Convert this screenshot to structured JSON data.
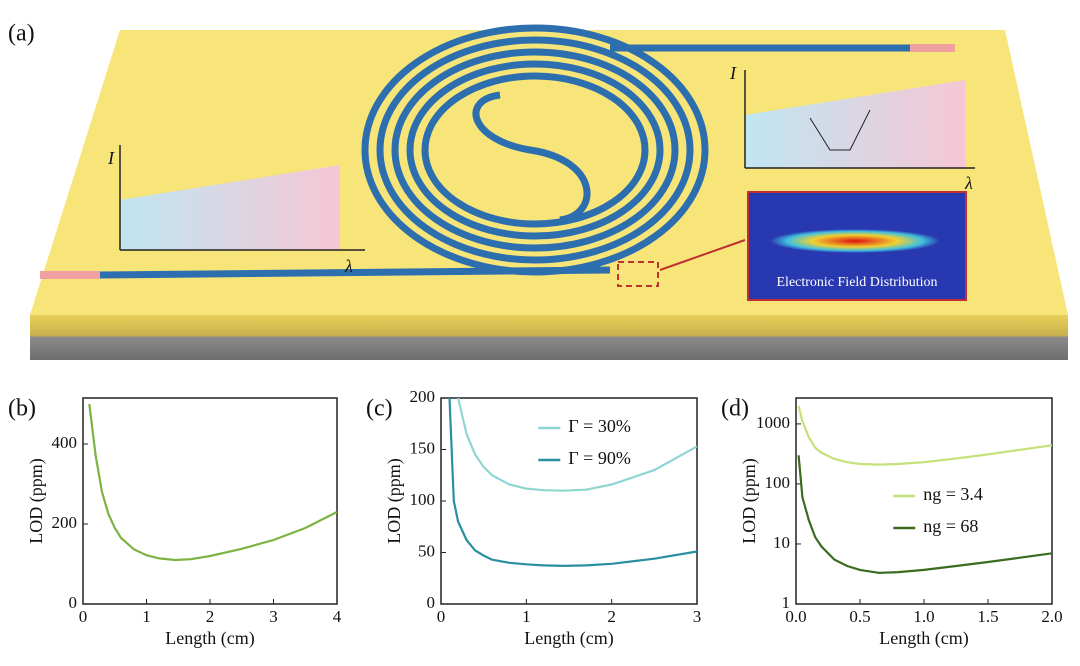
{
  "illustration": {
    "label": "(a)",
    "inset_left": {
      "y_axis": "I",
      "x_axis": "λ"
    },
    "inset_right": {
      "y_axis": "I",
      "x_axis": "λ"
    },
    "field_caption": "Electronic Field Distribution"
  },
  "chart_data": [
    {
      "type": "line",
      "panel_label": "(b)",
      "x_label": "Length (cm)",
      "y_label": "LOD (ppm)",
      "x": [
        0.1,
        0.2,
        0.3,
        0.4,
        0.5,
        0.6,
        0.8,
        1.0,
        1.2,
        1.45,
        1.7,
        2.0,
        2.5,
        3.0,
        3.5,
        4.0
      ],
      "values": [
        500,
        370,
        280,
        225,
        190,
        165,
        137,
        122,
        114,
        110,
        112,
        120,
        138,
        160,
        190,
        230
      ],
      "color": "#7cb342",
      "xlim": [
        0,
        4
      ],
      "xticks": [
        0,
        1,
        2,
        3,
        4
      ],
      "ylim": [
        0,
        515
      ],
      "yticks": [
        0,
        200,
        400
      ]
    },
    {
      "type": "line",
      "panel_label": "(c)",
      "x_label": "Length (cm)",
      "y_label": "LOD (ppm)",
      "x": [
        0.1,
        0.15,
        0.2,
        0.3,
        0.4,
        0.5,
        0.6,
        0.8,
        1.0,
        1.2,
        1.43,
        1.7,
        2.0,
        2.5,
        3.0
      ],
      "series": [
        {
          "name": "Γ = 30%",
          "color": "#8fd6d2",
          "values": [
            null,
            null,
            200,
            165,
            145,
            133,
            125,
            116,
            112,
            110.5,
            110,
            111,
            116,
            130,
            153
          ]
        },
        {
          "name": "Γ = 90%",
          "color": "#2a8fa0",
          "values": [
            200,
            100,
            80,
            62,
            52,
            47,
            43,
            40,
            38.5,
            37.5,
            37,
            37.5,
            39,
            44,
            51
          ]
        }
      ],
      "legend": "upper right",
      "xlim": [
        0,
        3
      ],
      "xticks": [
        0,
        1,
        2,
        3
      ],
      "ylim": [
        0,
        200
      ],
      "yticks": [
        0,
        50,
        100,
        150,
        200
      ]
    },
    {
      "type": "line",
      "panel_label": "(d)",
      "x_label": "Length (cm)",
      "y_label": "LOD (ppm)",
      "x": [
        0.02,
        0.05,
        0.1,
        0.15,
        0.2,
        0.3,
        0.4,
        0.5,
        0.65,
        0.8,
        1.0,
        1.25,
        1.5,
        1.75,
        2.0
      ],
      "series": [
        {
          "name": "ng = 3.4",
          "color": "#c5e17a",
          "values": [
            2000,
            1100,
            600,
            400,
            330,
            260,
            230,
            215,
            210,
            215,
            230,
            265,
            310,
            370,
            440
          ]
        },
        {
          "name": "ng = 68",
          "color": "#3b6b1e",
          "values": [
            300,
            60,
            25,
            13,
            9,
            5.5,
            4.3,
            3.7,
            3.3,
            3.4,
            3.7,
            4.3,
            5.0,
            5.9,
            7
          ]
        }
      ],
      "legend": "center right",
      "log_y": true,
      "xlim": [
        0,
        2
      ],
      "xticks": [
        {
          "value": 0,
          "label": "0.0"
        },
        0.5,
        {
          "value": 1,
          "label": "1.0"
        },
        1.5,
        {
          "value": 2,
          "label": "2.0"
        }
      ],
      "ylim": [
        1,
        2700
      ],
      "yticks": [
        1,
        10,
        100,
        1000
      ]
    }
  ]
}
